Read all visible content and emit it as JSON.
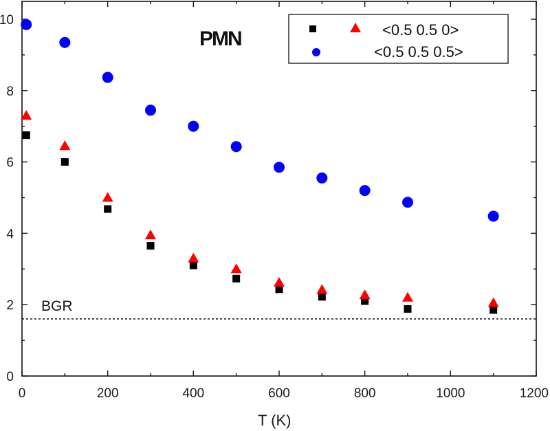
{
  "chart_data": {
    "type": "scatter",
    "title": "PMN",
    "xlabel": "T (K)",
    "ylabel": "",
    "xlim": [
      0,
      1200
    ],
    "ylim": [
      0,
      10.5
    ],
    "xticks": [
      0,
      200,
      400,
      600,
      800,
      1000,
      1200
    ],
    "yticks": [
      0,
      2,
      4,
      6,
      8,
      10
    ],
    "xtick_labels": [
      "0",
      "200",
      "400",
      "600",
      "800",
      "1000",
      "1200"
    ],
    "ytick_labels": [
      "0",
      "2",
      "4",
      "6",
      "8",
      "10"
    ],
    "legend": {
      "placement": "top-right",
      "entries": [
        {
          "label": "<0.5 0.5 0>",
          "series": [
            "squares",
            "triangles"
          ]
        },
        {
          "label": "<0.5 0.5 0.5>",
          "series": [
            "circles"
          ]
        }
      ]
    },
    "reference_line": {
      "label": "BGR",
      "y": 1.6,
      "style": "dotted"
    },
    "series": [
      {
        "name": "squares",
        "marker": "square",
        "color": "#000000",
        "x": [
          10,
          100,
          200,
          300,
          400,
          500,
          600,
          700,
          800,
          900,
          1100
        ],
        "y": [
          6.75,
          6.0,
          4.68,
          3.65,
          3.1,
          2.73,
          2.43,
          2.22,
          2.1,
          1.88,
          1.85
        ]
      },
      {
        "name": "triangles",
        "marker": "triangle",
        "color": "#ff0000",
        "x": [
          10,
          100,
          200,
          300,
          400,
          500,
          600,
          700,
          800,
          900,
          1100
        ],
        "y": [
          7.3,
          6.45,
          5.0,
          3.95,
          3.3,
          3.0,
          2.62,
          2.42,
          2.27,
          2.2,
          2.05
        ]
      },
      {
        "name": "circles",
        "marker": "circle",
        "color": "#0000ff",
        "x": [
          10,
          100,
          200,
          300,
          400,
          500,
          600,
          700,
          800,
          900,
          1100
        ],
        "y": [
          9.85,
          9.35,
          8.37,
          7.45,
          7.0,
          6.43,
          5.85,
          5.55,
          5.2,
          4.87,
          4.48
        ]
      }
    ]
  }
}
